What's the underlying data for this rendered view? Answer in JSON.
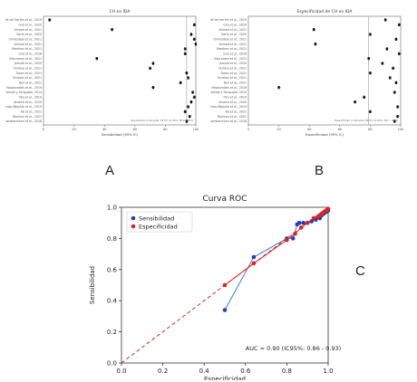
{
  "panel_letters": {
    "a": "A",
    "b": "B",
    "c": "C"
  },
  "chart_data": [
    {
      "type": "scatter",
      "panel": "A",
      "title": "CH en IDA",
      "xlabel": "Sensibilidad (95% IC)",
      "xlim": [
        0,
        100
      ],
      "xticks": [
        0,
        20,
        40,
        60,
        80,
        100
      ],
      "ref_line_x": 94,
      "rows": [
        {
          "label": "Pirámide de Ferritin et al., 2019",
          "value": 4,
          "err": 1
        },
        {
          "label": "Guo et al., 2020",
          "value": 99,
          "err": 1
        },
        {
          "label": "Ahmed et al., 2021",
          "value": 45,
          "err": 1
        },
        {
          "label": "Garfa et al., 2020",
          "value": 97,
          "err": 1
        },
        {
          "label": "Ormazábal et al., 2021",
          "value": 99,
          "err": 1
        },
        {
          "label": "Ahmad et al., 2021",
          "value": 100,
          "err": 1
        },
        {
          "label": "Martínez et al., 2021",
          "value": 93,
          "err": 1
        },
        {
          "label": "Guo et al., 2018",
          "value": 93,
          "err": 1
        },
        {
          "label": "Kahraman et al., 2021",
          "value": 35,
          "err": 1
        },
        {
          "label": "Jamudi et al., 2020",
          "value": 72,
          "err": 1
        },
        {
          "label": "Ferrosa et al., 2021",
          "value": 70,
          "err": 1
        },
        {
          "label": "Tiwari et al., 2021",
          "value": 94,
          "err": 1
        },
        {
          "label": "Ercolani et al., 2021",
          "value": 95,
          "err": 1
        },
        {
          "label": "Ball et al., 2021",
          "value": 90,
          "err": 1
        },
        {
          "label": "Hasanzadeh et al., 2019",
          "value": 72,
          "err": 1
        },
        {
          "label": "Karamaje y Sengupta, 2014",
          "value": 98,
          "err": 1
        },
        {
          "label": "Oku et al., 2019",
          "value": 99,
          "err": 1
        },
        {
          "label": "Ameira et al., 2020",
          "value": 97,
          "err": 1
        },
        {
          "label": "Ramos Wojniuk et al., 2019",
          "value": 95,
          "err": 1
        },
        {
          "label": "Ab et al., 2021",
          "value": 93,
          "err": 1
        },
        {
          "label": "Rozman et al., 2021",
          "value": 96,
          "err": 1
        },
        {
          "label": "Chambermann et al., 2018",
          "value": 94,
          "err": 1
        }
      ],
      "annotation": "Sensibilidad combinada: 93.5% (IC 95%: 88.6 - 96.5)"
    },
    {
      "type": "scatter",
      "panel": "B",
      "title": "Especificidad de    CH    en IDA",
      "xlabel": "Especificidad (95% IC)",
      "xlim": [
        0,
        100
      ],
      "xticks": [
        0,
        20,
        40,
        60,
        80,
        100
      ],
      "ref_line_x": 79,
      "rows": [
        {
          "label": "Pirámide de Ferritin et al., 2019",
          "value": 90,
          "err": 1
        },
        {
          "label": "Guo et al., 2020",
          "value": 99,
          "err": 1
        },
        {
          "label": "Ahmed et al., 2021",
          "value": 43,
          "err": 1
        },
        {
          "label": "Garfa et al., 2020",
          "value": 80,
          "err": 1
        },
        {
          "label": "Ormazábal et al., 2021",
          "value": 97,
          "err": 1
        },
        {
          "label": "Ahmad et al., 2021",
          "value": 44,
          "err": 1
        },
        {
          "label": "Martínez et al., 2021",
          "value": 91,
          "err": 1
        },
        {
          "label": "Guo et al., 2018",
          "value": 99,
          "err": 1
        },
        {
          "label": "Kahraman et al., 2021",
          "value": 79,
          "err": 1
        },
        {
          "label": "Jamudi et al., 2020",
          "value": 88,
          "err": 1
        },
        {
          "label": "Ferrosa et al., 2021",
          "value": 95,
          "err": 1
        },
        {
          "label": "Tiwari et al., 2021",
          "value": 80,
          "err": 1
        },
        {
          "label": "Ercolani et al., 2021",
          "value": 93,
          "err": 1
        },
        {
          "label": "Ball et al., 2021",
          "value": 97,
          "err": 1
        },
        {
          "label": "Hasanzadeh et al., 2019",
          "value": 20,
          "err": 1
        },
        {
          "label": "Karamaje y Sengupta, 2014",
          "value": 96,
          "err": 1
        },
        {
          "label": "Oku et al., 2019",
          "value": 76,
          "err": 1
        },
        {
          "label": "Ameira et al., 2020",
          "value": 70,
          "err": 1
        },
        {
          "label": "Ramos Wojniuk et al., 2019",
          "value": 98,
          "err": 1
        },
        {
          "label": "Ab et al., 2021",
          "value": 80,
          "err": 1
        },
        {
          "label": "Rozman et al., 2021",
          "value": 98,
          "err": 1
        },
        {
          "label": "Chambermann et al., 2018",
          "value": 96,
          "err": 1
        }
      ],
      "annotation": "Especificidad combinada: 89.8% (IC 95%: 84.7 - 93.3)"
    },
    {
      "type": "line",
      "panel": "C",
      "title": "Curva ROC",
      "xlabel": "Especificidad",
      "ylabel": "Sensibilidad",
      "xlim": [
        0,
        1
      ],
      "ylim": [
        0,
        1
      ],
      "xticks": [
        0.0,
        0.2,
        0.4,
        0.6,
        0.8,
        1.0
      ],
      "yticks": [
        0.0,
        0.2,
        0.4,
        0.6,
        0.8,
        1.0
      ],
      "legend_position": "top-left",
      "series": [
        {
          "name": "Sensibilidad",
          "color": "#1f3fbf",
          "x": [
            0.5,
            0.64,
            0.8,
            0.83,
            0.85,
            0.86,
            0.88,
            0.9,
            0.92,
            0.94,
            0.96,
            0.97,
            0.98,
            0.99,
            1.0
          ],
          "y": [
            0.34,
            0.68,
            0.8,
            0.8,
            0.89,
            0.9,
            0.9,
            0.9,
            0.91,
            0.92,
            0.93,
            0.95,
            0.96,
            0.97,
            0.98
          ]
        },
        {
          "name": "Especificidad",
          "color": "#e0201e",
          "x": [
            0.5,
            0.64,
            0.8,
            0.84,
            0.87,
            0.9,
            0.93,
            0.95,
            0.96,
            0.97,
            0.98,
            0.99,
            1.0
          ],
          "y": [
            0.5,
            0.64,
            0.79,
            0.83,
            0.87,
            0.9,
            0.93,
            0.94,
            0.95,
            0.96,
            0.97,
            0.98,
            0.99
          ]
        }
      ],
      "diagonal": {
        "color": "#e0201e",
        "style": "dashed"
      },
      "annotation": "AUC = 0.90 (IC95%: 0.86 - 0.93)"
    }
  ]
}
